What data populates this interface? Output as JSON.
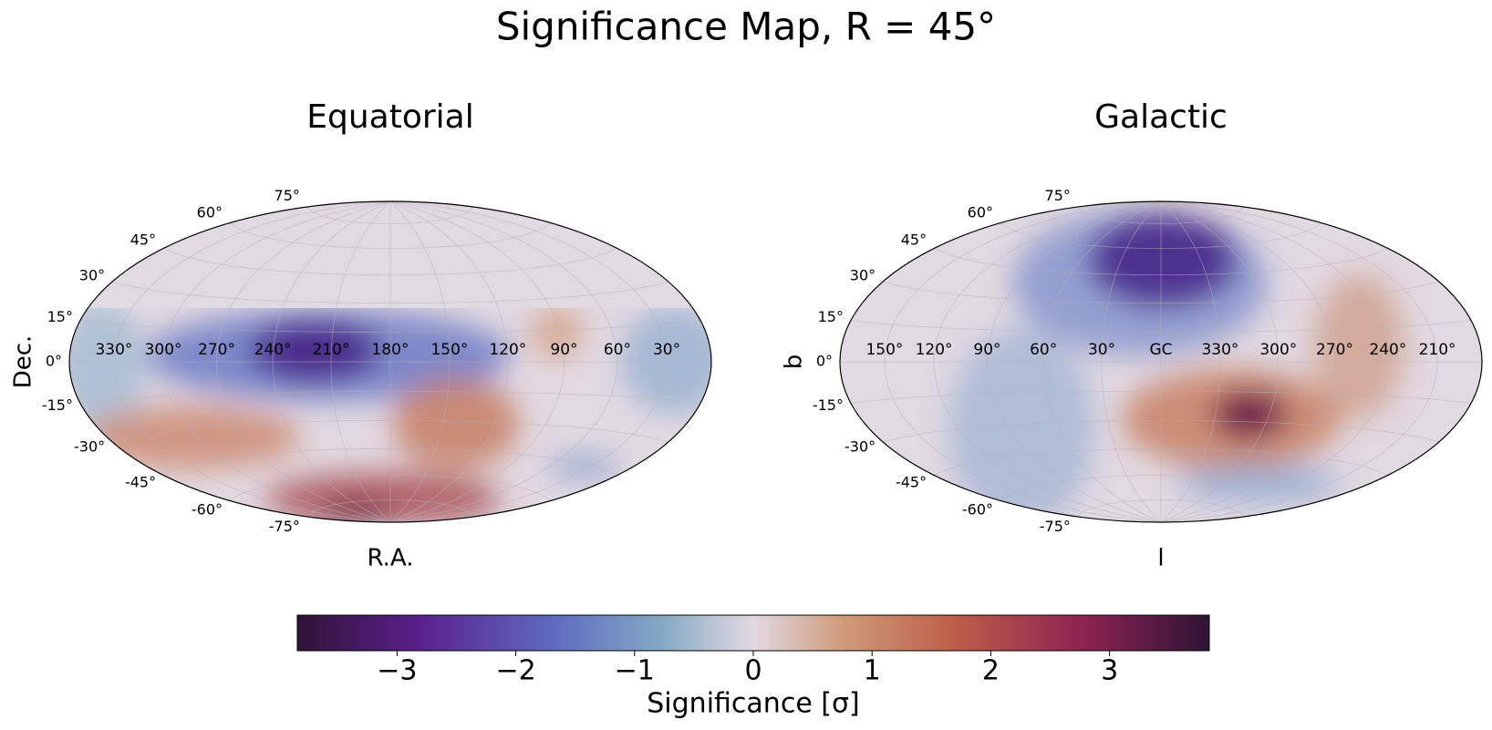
{
  "title": "Significance Map, R = 45°",
  "chart_data": [
    {
      "type": "map",
      "projection": "hammer",
      "title": "Equatorial",
      "xlabel": "R.A.",
      "ylabel": "Dec.",
      "center_lon": 180,
      "lon_ticks": [
        {
          "value": 330,
          "label": "330°"
        },
        {
          "value": 300,
          "label": "300°"
        },
        {
          "value": 270,
          "label": "270°"
        },
        {
          "value": 240,
          "label": "240°"
        },
        {
          "value": 210,
          "label": "210°"
        },
        {
          "value": 180,
          "label": "180°"
        },
        {
          "value": 150,
          "label": "150°"
        },
        {
          "value": 120,
          "label": "120°"
        },
        {
          "value": 90,
          "label": "90°"
        },
        {
          "value": 60,
          "label": "60°"
        },
        {
          "value": 30,
          "label": "30°"
        }
      ],
      "lat_ticks": [
        {
          "value": 75,
          "label": "75°"
        },
        {
          "value": 60,
          "label": "60°"
        },
        {
          "value": 45,
          "label": "45°"
        },
        {
          "value": 30,
          "label": "30°"
        },
        {
          "value": 15,
          "label": "15°"
        },
        {
          "value": 0,
          "label": "0°"
        },
        {
          "value": -15,
          "label": "-15°"
        },
        {
          "value": -30,
          "label": "-30°"
        },
        {
          "value": -45,
          "label": "-45°"
        },
        {
          "value": -60,
          "label": "-60°"
        },
        {
          "value": -75,
          "label": "-75°"
        }
      ],
      "grid": true
    },
    {
      "type": "map",
      "projection": "hammer",
      "title": "Galactic",
      "xlabel": "l",
      "ylabel": "b",
      "center_lon": 0,
      "lon_ticks": [
        {
          "value": 150,
          "label": "150°"
        },
        {
          "value": 120,
          "label": "120°"
        },
        {
          "value": 90,
          "label": "90°"
        },
        {
          "value": 60,
          "label": "60°"
        },
        {
          "value": 30,
          "label": "30°"
        },
        {
          "value": 0,
          "label": "GC"
        },
        {
          "value": 330,
          "label": "330°"
        },
        {
          "value": 300,
          "label": "300°"
        },
        {
          "value": 270,
          "label": "270°"
        },
        {
          "value": 240,
          "label": "240°"
        },
        {
          "value": 210,
          "label": "210°"
        }
      ],
      "lat_ticks": [
        {
          "value": 75,
          "label": "75°"
        },
        {
          "value": 60,
          "label": "60°"
        },
        {
          "value": 45,
          "label": "45°"
        },
        {
          "value": 30,
          "label": "30°"
        },
        {
          "value": 15,
          "label": "15°"
        },
        {
          "value": 0,
          "label": "0°"
        },
        {
          "value": -15,
          "label": "-15°"
        },
        {
          "value": -30,
          "label": "-30°"
        },
        {
          "value": -45,
          "label": "-45°"
        },
        {
          "value": -60,
          "label": "-60°"
        },
        {
          "value": -75,
          "label": "-75°"
        }
      ],
      "grid": true
    },
    {
      "type": "colorbar",
      "colormap": "twilight_shifted",
      "xlabel": "Significance [σ]",
      "xlim": [
        -3.84,
        3.84
      ],
      "xticks": [
        {
          "value": -3,
          "label": "−3"
        },
        {
          "value": -2,
          "label": "−2"
        },
        {
          "value": -1,
          "label": "−1"
        },
        0,
        1,
        2,
        3
      ]
    }
  ]
}
